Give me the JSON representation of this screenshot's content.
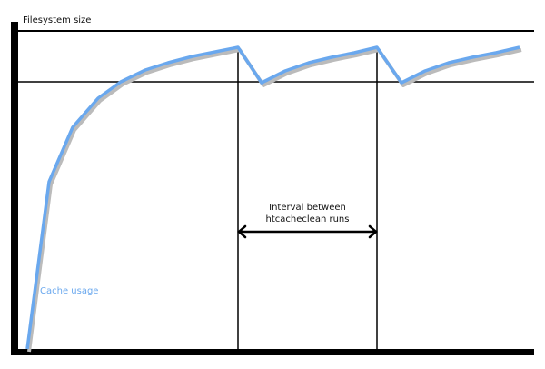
{
  "diagram": {
    "y_axis_label": "Filesystem size",
    "curve_label": "Cache usage",
    "interval_label_line1": "Interval between",
    "interval_label_line2": "htcacheclean runs",
    "colors": {
      "curve": "#6aa8ee",
      "axes": "#000000",
      "curve_label": "#6aa8ee"
    }
  }
}
